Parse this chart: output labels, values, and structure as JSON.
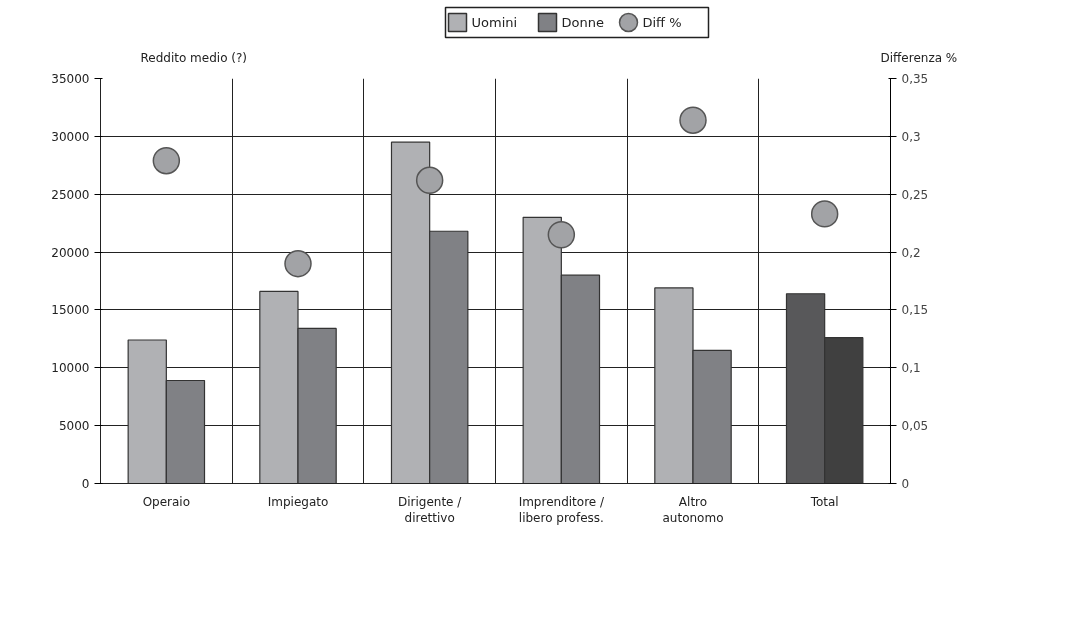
{
  "chart_data": {
    "type": "bar",
    "ylabel": "Reddito medio (?)",
    "y2label": "Differenza %",
    "categories": [
      "Operaio",
      "Impiegato",
      "Dirigente / direttivo",
      "Imprenditore / libero profess.",
      "Altro autonomo",
      "Total"
    ],
    "series": [
      {
        "name": "Uomini",
        "color": "#b0b1b4",
        "colors": [
          "#b0b1b4",
          "#b0b1b4",
          "#b0b1b4",
          "#b0b1b4",
          "#b0b1b4",
          "#58585a"
        ],
        "values": [
          12400,
          16600,
          29500,
          23000,
          16900,
          16400
        ]
      },
      {
        "name": "Donne",
        "color": "#808185",
        "colors": [
          "#808185",
          "#808185",
          "#808185",
          "#808185",
          "#808185",
          "#404040"
        ],
        "values": [
          8900,
          13400,
          21800,
          18000,
          11500,
          12600
        ]
      },
      {
        "name": "Diff %",
        "type": "scatter",
        "axis": "y2",
        "marker": "circle",
        "color": "#a2a3a6",
        "values": [
          0.279,
          0.19,
          0.262,
          0.215,
          0.314,
          0.233
        ]
      }
    ],
    "ylim": [
      0,
      35000
    ],
    "yticks": [
      0,
      5000,
      10000,
      15000,
      20000,
      25000,
      30000,
      35000
    ],
    "y2lim": [
      0,
      0.35
    ],
    "y2ticks": [
      {
        "value": 0,
        "label": "0"
      },
      {
        "value": 0.05,
        "label": "0,05"
      },
      {
        "value": 0.1,
        "label": "0,1"
      },
      {
        "value": 0.15,
        "label": "0,15"
      },
      {
        "value": 0.2,
        "label": "0,2"
      },
      {
        "value": 0.25,
        "label": "0,25"
      },
      {
        "value": 0.3,
        "label": "0,3"
      },
      {
        "value": 0.35,
        "label": "0,35"
      }
    ],
    "grid": true,
    "legend": "top"
  }
}
